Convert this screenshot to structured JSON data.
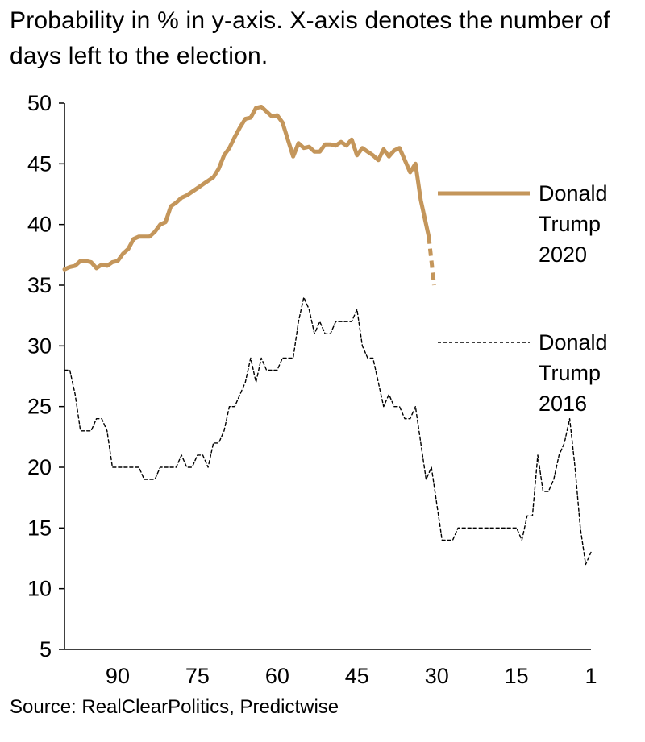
{
  "title": "Probability in % in y-axis. X-axis denotes the number of days left to the election.",
  "source": "Source:  RealClearPolitics, Predictwise",
  "chart_data": {
    "type": "line",
    "xlabel": "",
    "ylabel": "",
    "x_reversed": true,
    "xlim": [
      100,
      1
    ],
    "ylim": [
      5,
      50
    ],
    "y_ticks": [
      5,
      10,
      15,
      20,
      25,
      30,
      35,
      40,
      45,
      50
    ],
    "x_ticks": [
      90,
      75,
      60,
      45,
      30,
      15,
      1
    ],
    "grid": false,
    "legend_position": "right",
    "series": [
      {
        "name": "Donald Trump 2020",
        "legend_lines": [
          "Donald",
          "Trump",
          "2020"
        ],
        "color": "#c4965b",
        "style": "solid",
        "points": [
          [
            100,
            36.3
          ],
          [
            99,
            36.5
          ],
          [
            98,
            36.6
          ],
          [
            97,
            37.0
          ],
          [
            96,
            37.0
          ],
          [
            95,
            36.9
          ],
          [
            94,
            36.4
          ],
          [
            93,
            36.7
          ],
          [
            92,
            36.6
          ],
          [
            91,
            36.9
          ],
          [
            90,
            37.0
          ],
          [
            89,
            37.6
          ],
          [
            88,
            38.0
          ],
          [
            87,
            38.8
          ],
          [
            86,
            39.0
          ],
          [
            85,
            39.0
          ],
          [
            84,
            39.0
          ],
          [
            83,
            39.4
          ],
          [
            82,
            40.0
          ],
          [
            81,
            40.2
          ],
          [
            80,
            41.5
          ],
          [
            79,
            41.8
          ],
          [
            78,
            42.2
          ],
          [
            77,
            42.4
          ],
          [
            76,
            42.7
          ],
          [
            75,
            43.0
          ],
          [
            74,
            43.3
          ],
          [
            73,
            43.6
          ],
          [
            72,
            43.9
          ],
          [
            71,
            44.6
          ],
          [
            70,
            45.7
          ],
          [
            69,
            46.3
          ],
          [
            68,
            47.2
          ],
          [
            67,
            48.0
          ],
          [
            66,
            48.7
          ],
          [
            65,
            48.8
          ],
          [
            64,
            49.6
          ],
          [
            63,
            49.7
          ],
          [
            62,
            49.3
          ],
          [
            61,
            48.9
          ],
          [
            60,
            49.0
          ],
          [
            59,
            48.4
          ],
          [
            58,
            47.0
          ],
          [
            57,
            45.6
          ],
          [
            56,
            46.7
          ],
          [
            55,
            46.3
          ],
          [
            54,
            46.4
          ],
          [
            53,
            46.0
          ],
          [
            52,
            46.0
          ],
          [
            51,
            46.6
          ],
          [
            50,
            46.6
          ],
          [
            49,
            46.5
          ],
          [
            48,
            46.8
          ],
          [
            47,
            46.5
          ],
          [
            46,
            47.0
          ],
          [
            45,
            45.7
          ],
          [
            44,
            46.3
          ],
          [
            43,
            46.0
          ],
          [
            42,
            45.7
          ],
          [
            41,
            45.3
          ],
          [
            40,
            46.2
          ],
          [
            39,
            45.6
          ],
          [
            38,
            46.1
          ],
          [
            37,
            46.3
          ],
          [
            36,
            45.3
          ],
          [
            35,
            44.3
          ],
          [
            34,
            45.0
          ],
          [
            33,
            42.0
          ],
          [
            32,
            40.0
          ],
          [
            31.5,
            39.0
          ]
        ],
        "projection": [
          [
            31.5,
            39.0
          ],
          [
            30.5,
            35.0
          ]
        ]
      },
      {
        "name": "Donald Trump 2016",
        "legend_lines": [
          "Donald",
          "Trump",
          "2016"
        ],
        "color": "#000000",
        "style": "dashed",
        "points": [
          [
            100,
            28
          ],
          [
            99,
            28
          ],
          [
            98,
            26
          ],
          [
            97,
            23
          ],
          [
            96,
            23
          ],
          [
            95,
            23
          ],
          [
            94,
            24
          ],
          [
            93,
            24
          ],
          [
            92,
            23
          ],
          [
            91,
            20
          ],
          [
            90,
            20
          ],
          [
            89,
            20
          ],
          [
            88,
            20
          ],
          [
            87,
            20
          ],
          [
            86,
            20
          ],
          [
            85,
            19
          ],
          [
            84,
            19
          ],
          [
            83,
            19
          ],
          [
            82,
            20
          ],
          [
            81,
            20
          ],
          [
            80,
            20
          ],
          [
            79,
            20
          ],
          [
            78,
            21
          ],
          [
            77,
            20
          ],
          [
            76,
            20
          ],
          [
            75,
            21
          ],
          [
            74,
            21
          ],
          [
            73,
            20
          ],
          [
            72,
            22
          ],
          [
            71,
            22
          ],
          [
            70,
            23
          ],
          [
            69,
            25
          ],
          [
            68,
            25
          ],
          [
            67,
            26
          ],
          [
            66,
            27
          ],
          [
            65,
            29
          ],
          [
            64,
            27
          ],
          [
            63,
            29
          ],
          [
            62,
            28
          ],
          [
            61,
            28
          ],
          [
            60,
            28
          ],
          [
            59,
            29
          ],
          [
            58,
            29
          ],
          [
            57,
            29
          ],
          [
            56,
            32
          ],
          [
            55,
            34
          ],
          [
            54,
            33
          ],
          [
            53,
            31
          ],
          [
            52,
            32
          ],
          [
            51,
            31
          ],
          [
            50,
            31
          ],
          [
            49,
            32
          ],
          [
            48,
            32
          ],
          [
            47,
            32
          ],
          [
            46,
            32
          ],
          [
            45,
            33
          ],
          [
            44,
            30
          ],
          [
            43,
            29
          ],
          [
            42,
            29
          ],
          [
            41,
            27
          ],
          [
            40,
            25
          ],
          [
            39,
            26
          ],
          [
            38,
            25
          ],
          [
            37,
            25
          ],
          [
            36,
            24
          ],
          [
            35,
            24
          ],
          [
            34,
            25
          ],
          [
            33,
            22
          ],
          [
            32,
            19
          ],
          [
            31,
            20
          ],
          [
            30,
            17
          ],
          [
            29,
            14
          ],
          [
            28,
            14
          ],
          [
            27,
            14
          ],
          [
            26,
            15
          ],
          [
            25,
            15
          ],
          [
            24,
            15
          ],
          [
            23,
            15
          ],
          [
            22,
            15
          ],
          [
            21,
            15
          ],
          [
            20,
            15
          ],
          [
            19,
            15
          ],
          [
            18,
            15
          ],
          [
            17,
            15
          ],
          [
            16,
            15
          ],
          [
            15,
            15
          ],
          [
            14,
            14
          ],
          [
            13,
            16
          ],
          [
            12,
            16
          ],
          [
            11,
            21
          ],
          [
            10,
            18
          ],
          [
            9,
            18
          ],
          [
            8,
            19
          ],
          [
            7,
            21
          ],
          [
            6,
            22
          ],
          [
            5,
            24
          ],
          [
            4,
            20
          ],
          [
            3,
            15
          ],
          [
            2,
            12
          ],
          [
            1,
            13
          ]
        ]
      }
    ]
  }
}
